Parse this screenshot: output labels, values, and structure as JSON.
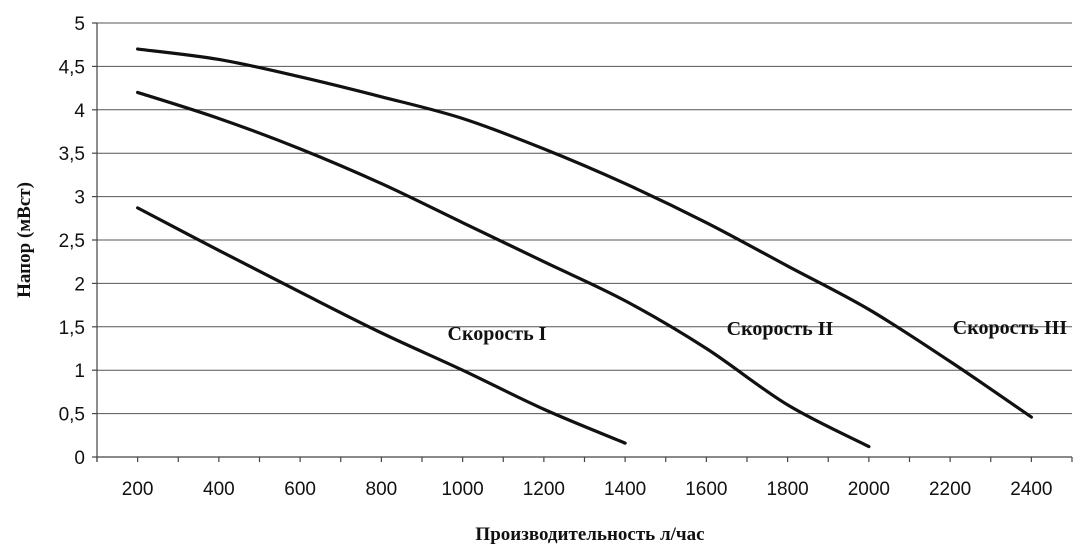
{
  "chart_data": {
    "type": "line",
    "title": "",
    "xlabel": "Производительность л/час",
    "ylabel": "Напор (мВст)",
    "xlim": [
      100,
      2500
    ],
    "ylim": [
      0,
      5
    ],
    "x_ticks": [
      200,
      400,
      600,
      800,
      1000,
      1200,
      1400,
      1600,
      1800,
      2000,
      2200,
      2400
    ],
    "x_tick_labels": [
      "200",
      "400",
      "600",
      "800",
      "1000",
      "1200",
      "1400",
      "1600",
      "1800",
      "2000",
      "2200",
      "2400"
    ],
    "y_ticks": [
      0,
      0.5,
      1,
      1.5,
      2,
      2.5,
      3,
      3.5,
      4,
      4.5,
      5
    ],
    "y_tick_labels": [
      "0",
      "0,5",
      "1",
      "1,5",
      "2",
      "2,5",
      "3",
      "3,5",
      "4",
      "4,5",
      "5"
    ],
    "grid": "horizontal",
    "series": [
      {
        "name": "Скорость I",
        "x": [
          200,
          400,
          600,
          800,
          1000,
          1200,
          1400
        ],
        "y": [
          2.87,
          2.38,
          1.9,
          1.43,
          1.0,
          0.55,
          0.16
        ]
      },
      {
        "name": "Скорость II",
        "x": [
          200,
          400,
          600,
          800,
          1000,
          1200,
          1400,
          1600,
          1800,
          2000
        ],
        "y": [
          4.2,
          3.9,
          3.55,
          3.15,
          2.7,
          2.25,
          1.8,
          1.25,
          0.6,
          0.12
        ]
      },
      {
        "name": "Скорость III",
        "x": [
          200,
          400,
          600,
          800,
          1000,
          1200,
          1400,
          1600,
          1800,
          2000,
          2200,
          2400
        ],
        "y": [
          4.7,
          4.58,
          4.38,
          4.15,
          3.9,
          3.55,
          3.15,
          2.7,
          2.2,
          1.7,
          1.1,
          0.46
        ]
      }
    ]
  }
}
